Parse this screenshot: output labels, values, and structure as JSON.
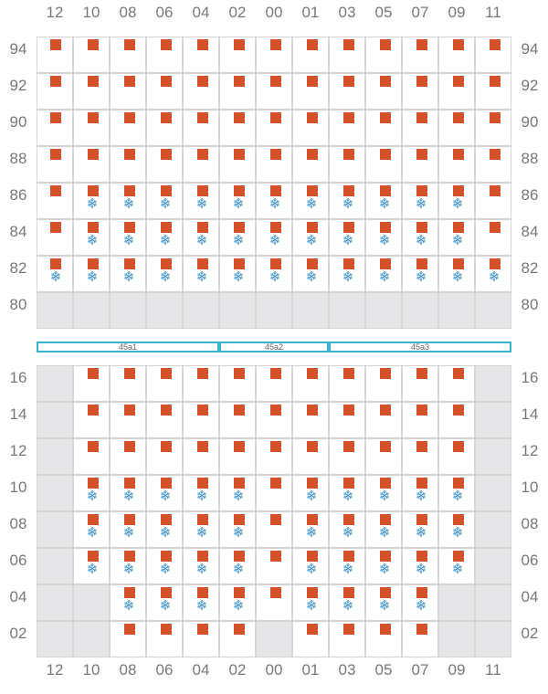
{
  "columns": [
    "12",
    "10",
    "08",
    "06",
    "04",
    "02",
    "00",
    "01",
    "03",
    "05",
    "07",
    "09",
    "11"
  ],
  "top_block": {
    "rows": [
      {
        "label": "94",
        "cells": [
          "S",
          "S",
          "S",
          "S",
          "S",
          "S",
          "S",
          "S",
          "S",
          "S",
          "S",
          "S",
          "S"
        ]
      },
      {
        "label": "92",
        "cells": [
          "S",
          "S",
          "S",
          "S",
          "S",
          "S",
          "S",
          "S",
          "S",
          "S",
          "S",
          "S",
          "S"
        ]
      },
      {
        "label": "90",
        "cells": [
          "S",
          "S",
          "S",
          "S",
          "S",
          "S",
          "S",
          "S",
          "S",
          "S",
          "S",
          "S",
          "S"
        ]
      },
      {
        "label": "88",
        "cells": [
          "S",
          "S",
          "S",
          "S",
          "S",
          "S",
          "S",
          "S",
          "S",
          "S",
          "S",
          "S",
          "S"
        ]
      },
      {
        "label": "86",
        "cells": [
          "S",
          "SR",
          "SR",
          "SR",
          "SR",
          "SR",
          "SR",
          "SR",
          "SR",
          "SR",
          "SR",
          "SR",
          "S"
        ]
      },
      {
        "label": "84",
        "cells": [
          "S",
          "SR",
          "SR",
          "SR",
          "SR",
          "SR",
          "SR",
          "SR",
          "SR",
          "SR",
          "SR",
          "SR",
          "S"
        ]
      },
      {
        "label": "82",
        "cells": [
          "SR",
          "SR",
          "SR",
          "SR",
          "SR",
          "SR",
          "SR",
          "SR",
          "SR",
          "SR",
          "SR",
          "SR",
          "SR"
        ]
      },
      {
        "label": "80",
        "cells": [
          "E",
          "E",
          "E",
          "E",
          "E",
          "E",
          "E",
          "E",
          "E",
          "E",
          "E",
          "E",
          "E"
        ]
      }
    ]
  },
  "segments": [
    {
      "label": "45a1",
      "start": 0,
      "span": 5
    },
    {
      "label": "45a2",
      "start": 5,
      "span": 3
    },
    {
      "label": "45a3",
      "start": 8,
      "span": 5
    }
  ],
  "bottom_block": {
    "rows": [
      {
        "label": "16",
        "cells": [
          "E",
          "S",
          "S",
          "S",
          "S",
          "S",
          "S",
          "S",
          "S",
          "S",
          "S",
          "S",
          "E"
        ]
      },
      {
        "label": "14",
        "cells": [
          "E",
          "S",
          "S",
          "S",
          "S",
          "S",
          "S",
          "S",
          "S",
          "S",
          "S",
          "S",
          "E"
        ]
      },
      {
        "label": "12",
        "cells": [
          "E",
          "S",
          "S",
          "S",
          "S",
          "S",
          "S",
          "S",
          "S",
          "S",
          "S",
          "S",
          "E"
        ]
      },
      {
        "label": "10",
        "cells": [
          "E",
          "SR",
          "SR",
          "SR",
          "SR",
          "SR",
          "S",
          "SR",
          "SR",
          "SR",
          "SR",
          "SR",
          "E"
        ]
      },
      {
        "label": "08",
        "cells": [
          "E",
          "SR",
          "SR",
          "SR",
          "SR",
          "SR",
          "S",
          "SR",
          "SR",
          "SR",
          "SR",
          "SR",
          "E"
        ]
      },
      {
        "label": "06",
        "cells": [
          "E",
          "SR",
          "SR",
          "SR",
          "SR",
          "SR",
          "S",
          "SR",
          "SR",
          "SR",
          "SR",
          "SR",
          "E"
        ]
      },
      {
        "label": "04",
        "cells": [
          "E",
          "E",
          "SR",
          "SR",
          "SR",
          "SR",
          "S",
          "SR",
          "SR",
          "SR",
          "SR",
          "E",
          "E"
        ]
      },
      {
        "label": "02",
        "cells": [
          "E",
          "E",
          "S",
          "S",
          "S",
          "S",
          "E",
          "S",
          "S",
          "S",
          "S",
          "E",
          "E"
        ]
      }
    ]
  },
  "icons": {
    "container": "container-square-icon",
    "reefer": "snowflake-icon"
  },
  "colors": {
    "container": "#d4522a",
    "reefer": "#3a8fd6",
    "empty_slot": "#e5e5e8",
    "segment_border": "#39b3d7"
  }
}
